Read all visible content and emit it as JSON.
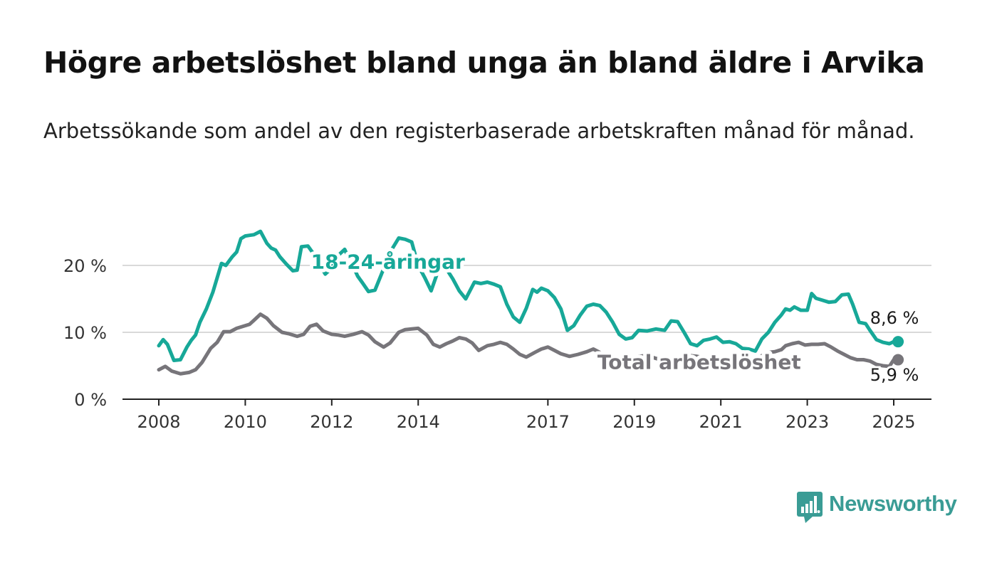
{
  "title": "Högre arbetslöshet bland unga än bland äldre i Arvika",
  "subtitle": "Arbetssökande som andel av den registerbaserade arbetskraften månad för månad.",
  "logo": {
    "text": "Newsworthy",
    "icon": "bar-chart-speech-bubble-icon"
  },
  "colors": {
    "young": "#17a898",
    "total": "#77757a",
    "grid": "#d9d9d9",
    "axis": "#222222"
  },
  "chart_data": {
    "type": "line",
    "xlabel": "",
    "ylabel": "",
    "ylim": [
      0,
      27
    ],
    "xlim": [
      2008.0,
      2025.1
    ],
    "grid": "horizontal",
    "yticks": [
      {
        "value": 0,
        "label": "0 %"
      },
      {
        "value": 10,
        "label": "10 %"
      },
      {
        "value": 20,
        "label": "20 %"
      }
    ],
    "xticks": [
      {
        "value": 2008,
        "label": "2008"
      },
      {
        "value": 2010,
        "label": "2010"
      },
      {
        "value": 2012,
        "label": "2012"
      },
      {
        "value": 2014,
        "label": "2014"
      },
      {
        "value": 2017,
        "label": "2017"
      },
      {
        "value": 2019,
        "label": "2019"
      },
      {
        "value": 2021,
        "label": "2021"
      },
      {
        "value": 2023,
        "label": "2023"
      },
      {
        "value": 2025,
        "label": "2025"
      }
    ],
    "series": [
      {
        "name": "18-24-åringar",
        "color": "#17a898",
        "label_pos": [
          2013.3,
          19.5
        ],
        "end_label": "8,6 %",
        "points": [
          [
            2008.0,
            8.0
          ],
          [
            2008.1,
            8.9
          ],
          [
            2008.2,
            8.2
          ],
          [
            2008.35,
            5.8
          ],
          [
            2008.5,
            5.9
          ],
          [
            2008.65,
            7.8
          ],
          [
            2008.75,
            8.8
          ],
          [
            2008.85,
            9.6
          ],
          [
            2008.95,
            11.5
          ],
          [
            2009.1,
            13.5
          ],
          [
            2009.25,
            16.0
          ],
          [
            2009.45,
            20.3
          ],
          [
            2009.55,
            20.0
          ],
          [
            2009.7,
            21.3
          ],
          [
            2009.8,
            22.0
          ],
          [
            2009.9,
            24.0
          ],
          [
            2010.0,
            24.4
          ],
          [
            2010.1,
            24.5
          ],
          [
            2010.2,
            24.6
          ],
          [
            2010.35,
            25.1
          ],
          [
            2010.5,
            23.3
          ],
          [
            2010.6,
            22.6
          ],
          [
            2010.7,
            22.3
          ],
          [
            2010.8,
            21.3
          ],
          [
            2010.95,
            20.2
          ],
          [
            2011.1,
            19.2
          ],
          [
            2011.2,
            19.3
          ],
          [
            2011.3,
            22.8
          ],
          [
            2011.45,
            22.9
          ],
          [
            2011.55,
            22.0
          ],
          [
            2011.7,
            20.4
          ],
          [
            2011.85,
            18.7
          ],
          [
            2012.0,
            19.6
          ],
          [
            2012.15,
            21.5
          ],
          [
            2012.3,
            22.4
          ],
          [
            2012.4,
            21.0
          ],
          [
            2012.5,
            19.8
          ],
          [
            2012.6,
            18.4
          ],
          [
            2012.7,
            17.5
          ],
          [
            2012.85,
            16.1
          ],
          [
            2013.0,
            16.3
          ],
          [
            2013.2,
            19.5
          ],
          [
            2013.4,
            22.5
          ],
          [
            2013.55,
            24.1
          ],
          [
            2013.7,
            23.9
          ],
          [
            2013.85,
            23.5
          ],
          [
            2014.0,
            20.0
          ],
          [
            2014.15,
            18.2
          ],
          [
            2014.3,
            16.2
          ],
          [
            2014.45,
            19.0
          ],
          [
            2014.6,
            20.0
          ],
          [
            2014.8,
            18.0
          ],
          [
            2014.95,
            16.2
          ],
          [
            2015.1,
            15.0
          ],
          [
            2015.3,
            17.5
          ],
          [
            2015.45,
            17.3
          ],
          [
            2015.6,
            17.5
          ],
          [
            2015.75,
            17.2
          ],
          [
            2015.9,
            16.8
          ],
          [
            2016.05,
            14.2
          ],
          [
            2016.2,
            12.3
          ],
          [
            2016.35,
            11.5
          ],
          [
            2016.5,
            13.6
          ],
          [
            2016.65,
            16.4
          ],
          [
            2016.75,
            16.0
          ],
          [
            2016.85,
            16.6
          ],
          [
            2017.0,
            16.2
          ],
          [
            2017.15,
            15.2
          ],
          [
            2017.3,
            13.5
          ],
          [
            2017.45,
            10.3
          ],
          [
            2017.6,
            11.0
          ],
          [
            2017.75,
            12.6
          ],
          [
            2017.9,
            13.9
          ],
          [
            2018.05,
            14.2
          ],
          [
            2018.2,
            14.0
          ],
          [
            2018.35,
            13.0
          ],
          [
            2018.5,
            11.5
          ],
          [
            2018.65,
            9.7
          ],
          [
            2018.8,
            9.0
          ],
          [
            2018.95,
            9.2
          ],
          [
            2019.1,
            10.3
          ],
          [
            2019.3,
            10.2
          ],
          [
            2019.5,
            10.5
          ],
          [
            2019.7,
            10.3
          ],
          [
            2019.85,
            11.7
          ],
          [
            2020.0,
            11.6
          ],
          [
            2020.15,
            10.0
          ],
          [
            2020.3,
            8.3
          ],
          [
            2020.45,
            8.0
          ],
          [
            2020.6,
            8.8
          ],
          [
            2020.75,
            9.0
          ],
          [
            2020.9,
            9.3
          ],
          [
            2021.05,
            8.5
          ],
          [
            2021.2,
            8.6
          ],
          [
            2021.35,
            8.3
          ],
          [
            2021.5,
            7.6
          ],
          [
            2021.65,
            7.5
          ],
          [
            2021.8,
            7.2
          ],
          [
            2021.95,
            9.0
          ],
          [
            2022.1,
            10.0
          ],
          [
            2022.25,
            11.5
          ],
          [
            2022.4,
            12.6
          ],
          [
            2022.5,
            13.5
          ],
          [
            2022.6,
            13.3
          ],
          [
            2022.7,
            13.8
          ],
          [
            2022.85,
            13.3
          ],
          [
            2023.0,
            13.3
          ],
          [
            2023.1,
            15.8
          ],
          [
            2023.2,
            15.1
          ],
          [
            2023.35,
            14.8
          ],
          [
            2023.5,
            14.5
          ],
          [
            2023.65,
            14.6
          ],
          [
            2023.8,
            15.6
          ],
          [
            2023.95,
            15.7
          ],
          [
            2024.05,
            14.2
          ],
          [
            2024.2,
            11.5
          ],
          [
            2024.35,
            11.3
          ],
          [
            2024.45,
            10.3
          ],
          [
            2024.6,
            8.9
          ],
          [
            2024.75,
            8.5
          ],
          [
            2024.9,
            8.3
          ],
          [
            2025.0,
            8.6
          ],
          [
            2025.1,
            8.6
          ]
        ]
      },
      {
        "name": "Total arbetslöshet",
        "color": "#77757a",
        "label_pos": [
          2020.5,
          4.5
        ],
        "end_label": "5,9 %",
        "points": [
          [
            2008.0,
            4.4
          ],
          [
            2008.15,
            4.9
          ],
          [
            2008.3,
            4.2
          ],
          [
            2008.5,
            3.8
          ],
          [
            2008.7,
            4.0
          ],
          [
            2008.85,
            4.4
          ],
          [
            2009.0,
            5.5
          ],
          [
            2009.2,
            7.6
          ],
          [
            2009.35,
            8.5
          ],
          [
            2009.5,
            10.1
          ],
          [
            2009.65,
            10.1
          ],
          [
            2009.8,
            10.6
          ],
          [
            2010.0,
            11.0
          ],
          [
            2010.1,
            11.2
          ],
          [
            2010.2,
            11.8
          ],
          [
            2010.35,
            12.7
          ],
          [
            2010.5,
            12.1
          ],
          [
            2010.65,
            11.0
          ],
          [
            2010.85,
            10.0
          ],
          [
            2011.0,
            9.8
          ],
          [
            2011.2,
            9.4
          ],
          [
            2011.35,
            9.7
          ],
          [
            2011.5,
            10.9
          ],
          [
            2011.65,
            11.2
          ],
          [
            2011.8,
            10.2
          ],
          [
            2012.0,
            9.7
          ],
          [
            2012.15,
            9.6
          ],
          [
            2012.3,
            9.4
          ],
          [
            2012.5,
            9.7
          ],
          [
            2012.7,
            10.1
          ],
          [
            2012.85,
            9.6
          ],
          [
            2013.0,
            8.6
          ],
          [
            2013.2,
            7.8
          ],
          [
            2013.35,
            8.4
          ],
          [
            2013.55,
            10.0
          ],
          [
            2013.7,
            10.4
          ],
          [
            2013.85,
            10.5
          ],
          [
            2014.0,
            10.6
          ],
          [
            2014.2,
            9.6
          ],
          [
            2014.35,
            8.2
          ],
          [
            2014.5,
            7.8
          ],
          [
            2014.65,
            8.3
          ],
          [
            2014.8,
            8.7
          ],
          [
            2014.95,
            9.2
          ],
          [
            2015.1,
            9.0
          ],
          [
            2015.25,
            8.4
          ],
          [
            2015.4,
            7.3
          ],
          [
            2015.6,
            8.0
          ],
          [
            2015.75,
            8.2
          ],
          [
            2015.9,
            8.5
          ],
          [
            2016.05,
            8.2
          ],
          [
            2016.2,
            7.5
          ],
          [
            2016.35,
            6.7
          ],
          [
            2016.5,
            6.3
          ],
          [
            2016.7,
            7.0
          ],
          [
            2016.85,
            7.5
          ],
          [
            2017.0,
            7.8
          ],
          [
            2017.15,
            7.3
          ],
          [
            2017.3,
            6.8
          ],
          [
            2017.5,
            6.4
          ],
          [
            2017.7,
            6.7
          ],
          [
            2017.9,
            7.1
          ],
          [
            2018.05,
            7.5
          ],
          [
            2018.2,
            7.0
          ],
          [
            2018.35,
            6.5
          ],
          [
            2018.5,
            6.2
          ],
          [
            2018.65,
            6.0
          ],
          [
            2018.8,
            6.0
          ],
          [
            2018.95,
            6.2
          ],
          [
            2019.1,
            6.4
          ],
          [
            2019.25,
            6.5
          ],
          [
            2019.4,
            6.3
          ],
          [
            2019.55,
            6.0
          ],
          [
            2019.7,
            5.6
          ],
          [
            2019.85,
            5.5
          ],
          [
            2020.0,
            5.8
          ],
          [
            2020.15,
            6.2
          ],
          [
            2020.3,
            6.5
          ],
          [
            2020.45,
            6.4
          ],
          [
            2020.6,
            6.2
          ],
          [
            2020.75,
            6.0
          ],
          [
            2020.9,
            6.1
          ],
          [
            2021.05,
            5.9
          ],
          [
            2021.2,
            6.0
          ],
          [
            2021.35,
            5.8
          ],
          [
            2021.5,
            5.7
          ],
          [
            2021.65,
            5.8
          ],
          [
            2021.8,
            6.0
          ],
          [
            2021.95,
            6.5
          ],
          [
            2022.1,
            7.0
          ],
          [
            2022.25,
            7.1
          ],
          [
            2022.4,
            7.4
          ],
          [
            2022.5,
            8.0
          ],
          [
            2022.65,
            8.3
          ],
          [
            2022.8,
            8.5
          ],
          [
            2022.95,
            8.1
          ],
          [
            2023.1,
            8.2
          ],
          [
            2023.25,
            8.2
          ],
          [
            2023.4,
            8.3
          ],
          [
            2023.55,
            7.8
          ],
          [
            2023.7,
            7.2
          ],
          [
            2023.85,
            6.7
          ],
          [
            2024.0,
            6.2
          ],
          [
            2024.15,
            5.9
          ],
          [
            2024.3,
            5.9
          ],
          [
            2024.45,
            5.7
          ],
          [
            2024.6,
            5.2
          ],
          [
            2024.75,
            5.0
          ],
          [
            2024.9,
            4.9
          ],
          [
            2025.0,
            5.9
          ],
          [
            2025.1,
            5.9
          ]
        ]
      }
    ]
  }
}
